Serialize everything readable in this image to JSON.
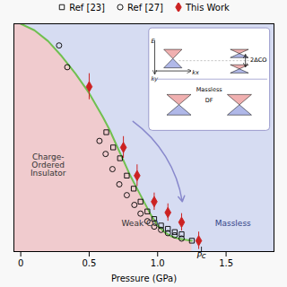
{
  "chart_data": {
    "type": "scatter",
    "xlabel": "Pressure (GPa)",
    "xlim": [
      -0.05,
      1.85
    ],
    "ylim": [
      -0.05,
      1.0
    ],
    "xticks": [
      0,
      0.5,
      {
        "value": 1.0,
        "label": "1.0"
      },
      1.5
    ],
    "yticks": [],
    "tick_labels": "x",
    "legend": "top",
    "regions": {
      "co_color": "#f5c8c8",
      "massless_color": "#c8d0f0"
    },
    "phase_boundary": {
      "color": "#70c050",
      "x": [
        0.0,
        0.1,
        0.2,
        0.3,
        0.4,
        0.5,
        0.6,
        0.65,
        0.7,
        0.75,
        0.8,
        0.85,
        0.9,
        0.95,
        1.0,
        1.05,
        1.1,
        1.15,
        1.2,
        1.25
      ],
      "y": [
        1.0,
        0.97,
        0.92,
        0.85,
        0.77,
        0.68,
        0.57,
        0.51,
        0.44,
        0.37,
        0.3,
        0.24,
        0.18,
        0.12,
        0.07,
        0.04,
        0.02,
        0.01,
        0.005,
        0.0
      ]
    },
    "series": [
      {
        "name": "Ref [23]",
        "type": "scatter",
        "marker": "square",
        "color": "black",
        "x": [
          0.625,
          0.675,
          0.725,
          0.775,
          0.825,
          0.875,
          0.925,
          0.975,
          1.025,
          1.075,
          1.125,
          1.175,
          1.25
        ],
        "values": [
          0.5,
          0.43,
          0.38,
          0.3,
          0.24,
          0.18,
          0.135,
          0.1,
          0.07,
          0.055,
          0.04,
          0.03,
          0.0
        ]
      },
      {
        "name": "Ref [27]",
        "type": "scatter",
        "marker": "circle",
        "color": "black",
        "x": [
          0.28,
          0.34,
          0.575,
          0.62,
          0.67,
          0.72,
          0.775,
          0.83,
          0.875,
          0.925,
          0.975,
          1.025,
          1.075,
          1.125,
          1.175
        ],
        "values": [
          0.9,
          0.8,
          0.46,
          0.4,
          0.33,
          0.26,
          0.21,
          0.165,
          0.125,
          0.09,
          0.065,
          0.05,
          0.035,
          0.025,
          0.01
        ]
      },
      {
        "name": "This Work",
        "type": "scatter",
        "marker": "diamond",
        "color": "#cc2222",
        "x": [
          0.5,
          0.75,
          0.85,
          0.975,
          1.075,
          1.175,
          1.3
        ],
        "values": [
          0.71,
          0.43,
          0.3,
          0.18,
          0.13,
          0.085,
          0.0
        ],
        "errors": [
          0.06,
          0.05,
          0.05,
          0.04,
          0.04,
          0.04,
          0.04
        ]
      }
    ],
    "annotations": [
      {
        "text": "Charge-\nOrdered\nInsulator",
        "x": 0.2,
        "y": 0.35,
        "color": "#333333"
      },
      {
        "text": "Weak CO",
        "x": 0.87,
        "y": 0.08,
        "color": "#333333"
      },
      {
        "text": "Massless",
        "x": 1.55,
        "y": 0.08,
        "color": "#334488"
      }
    ],
    "pc_marker": {
      "label": "Pc",
      "x": 1.32,
      "y": -0.04
    },
    "arrow": {
      "x1": 0.82,
      "y1": 0.55,
      "x2": 1.18,
      "y2": 0.18,
      "color": "#8888cc"
    },
    "inset_labels": {
      "gap": "2ΔCO",
      "energy": "E",
      "ky": "ky",
      "kx": "kx",
      "phase": "Massless",
      "phase2": "DF"
    }
  }
}
